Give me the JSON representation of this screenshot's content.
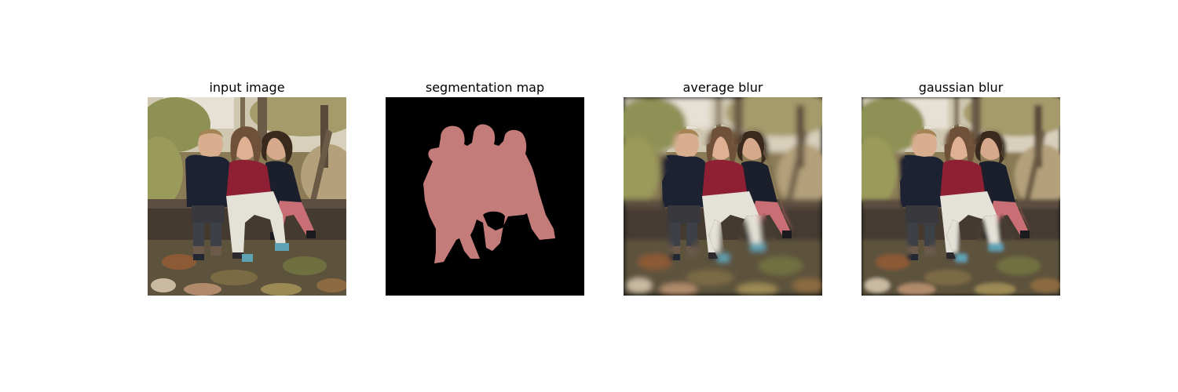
{
  "panels": [
    {
      "title": "input image"
    },
    {
      "title": "segmentation map"
    },
    {
      "title": "average blur"
    },
    {
      "title": "gaussian blur"
    }
  ],
  "colors": {
    "segmentation_mask": "#c47c7b",
    "segmentation_background": "#000000",
    "figure_background": "#ffffff"
  }
}
